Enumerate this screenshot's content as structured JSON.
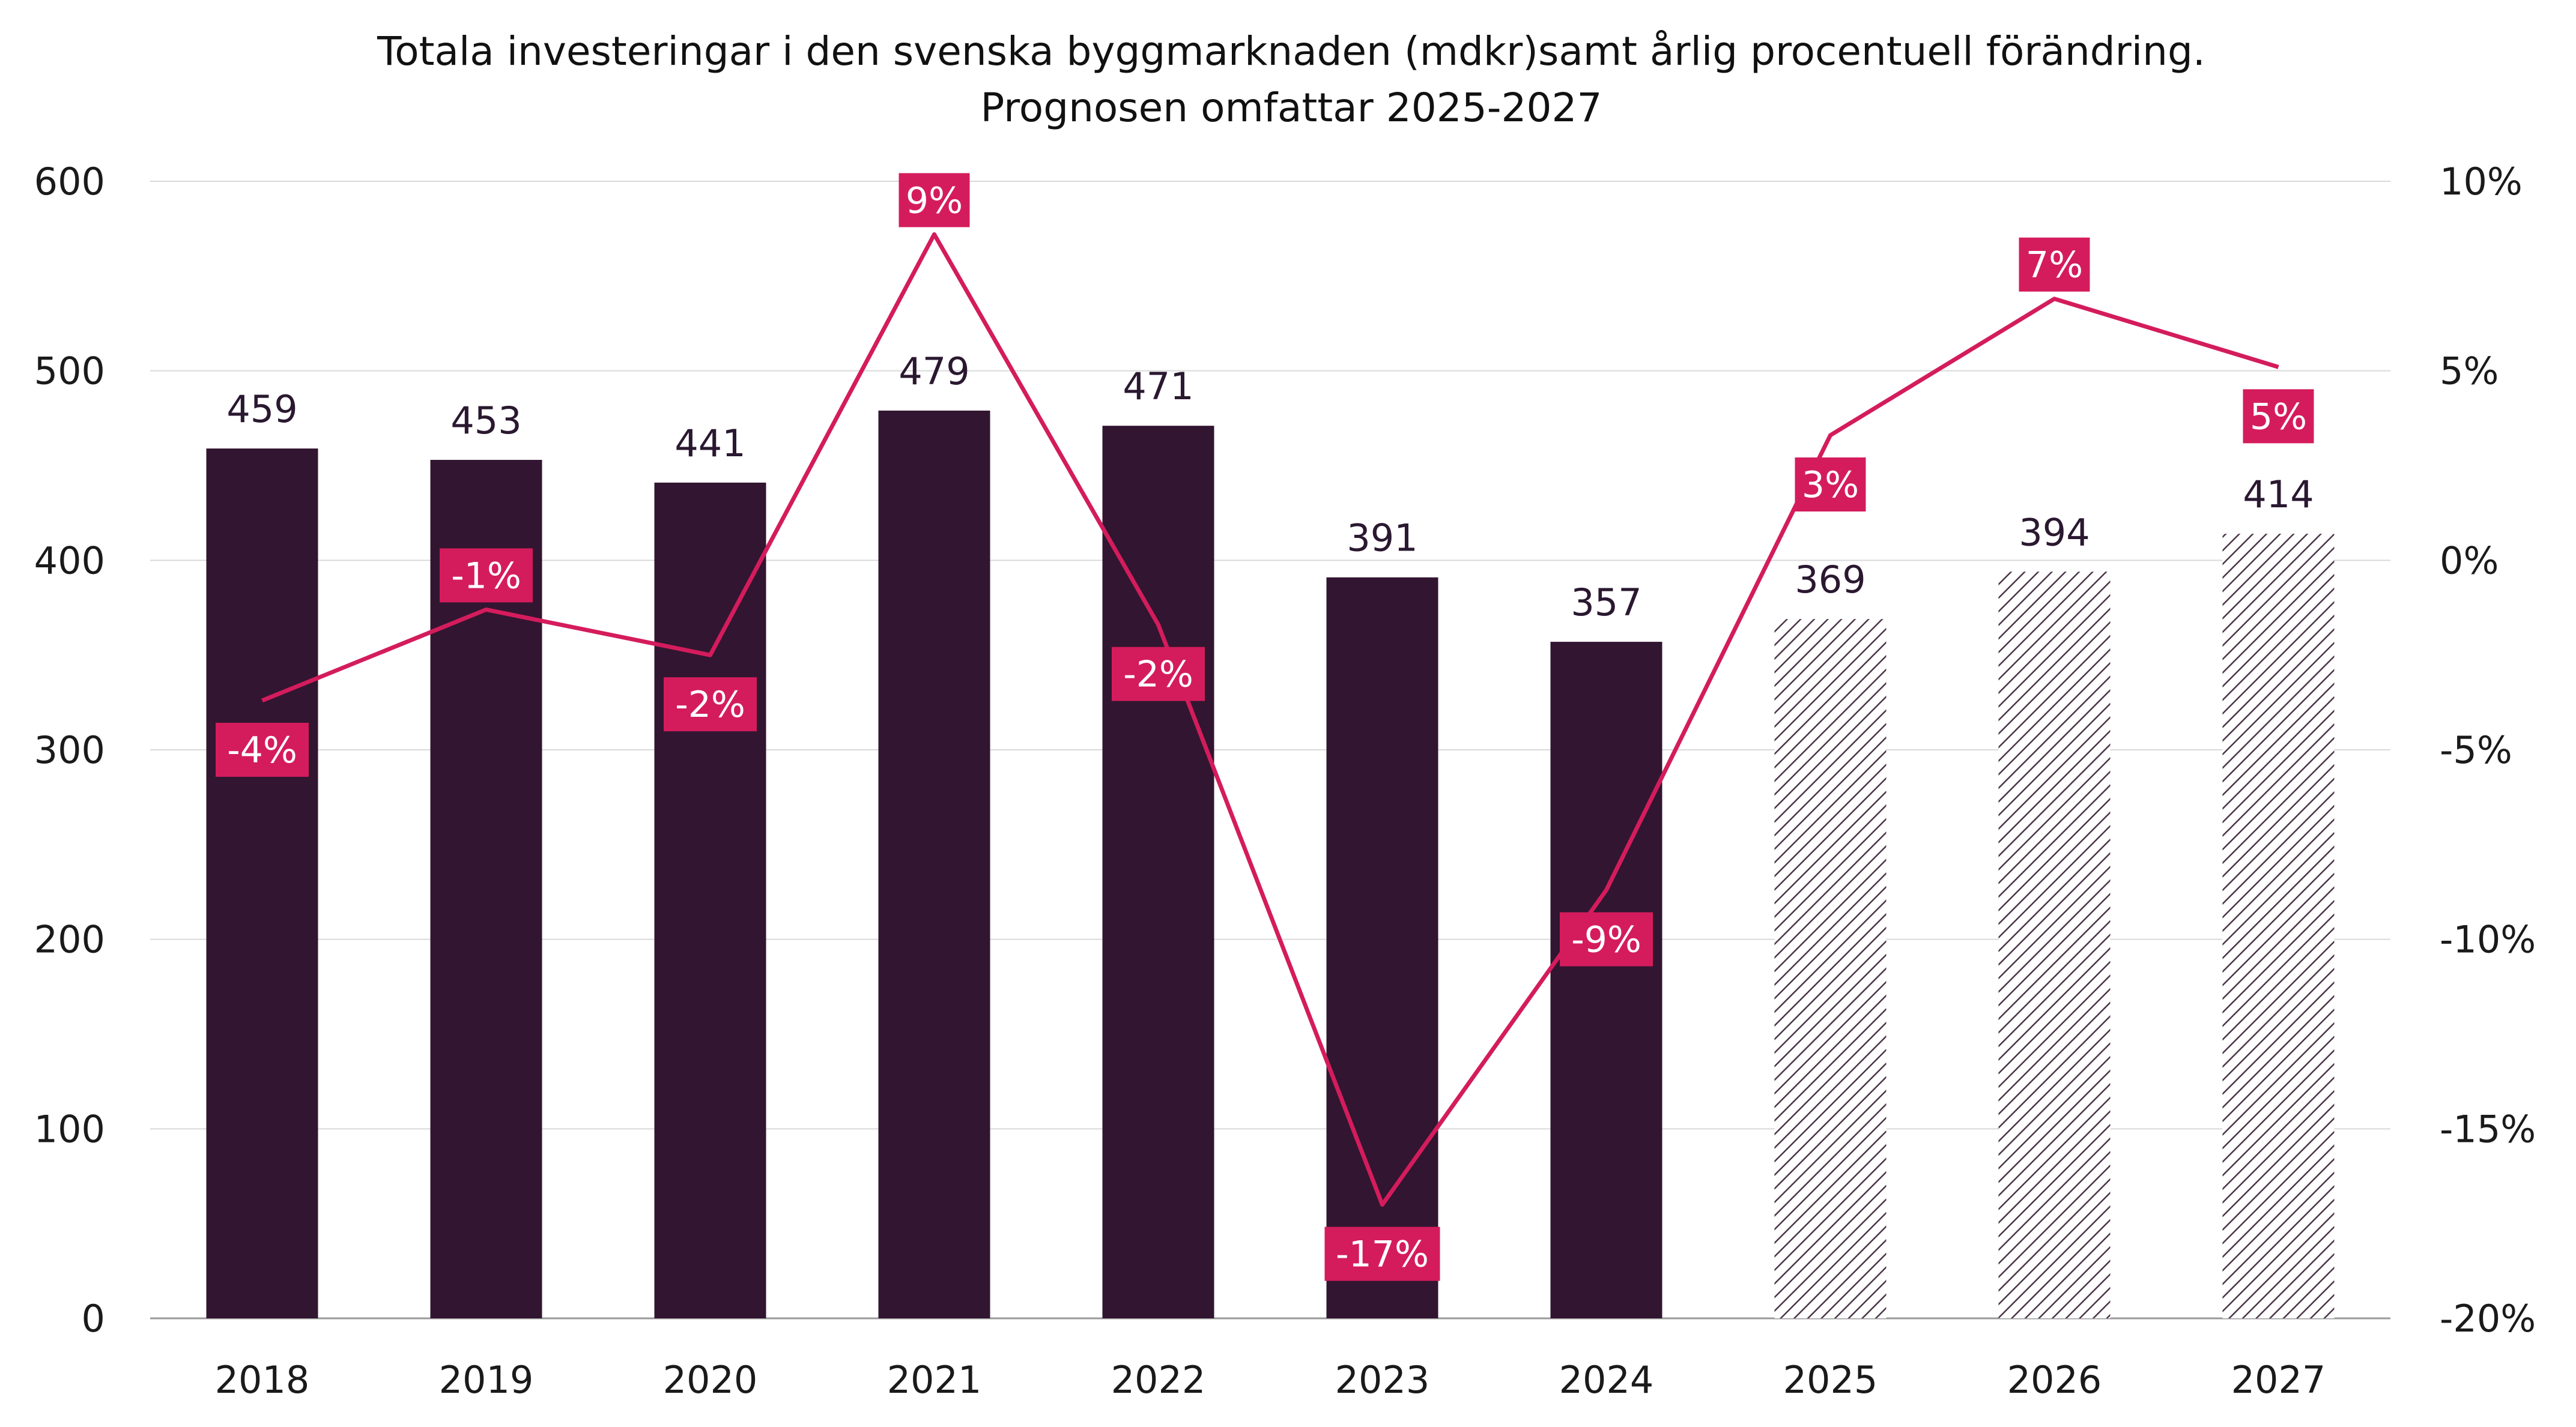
{
  "chart_data": {
    "type": "bar",
    "title": "Totala investeringar i den svenska byggmarknaden (mdkr)samt årlig procentuell förändring.",
    "subtitle": "Prognosen omfattar 2025-2027",
    "categories": [
      "2018",
      "2019",
      "2020",
      "2021",
      "2022",
      "2023",
      "2024",
      "2025",
      "2026",
      "2027"
    ],
    "series": [
      {
        "type": "bar",
        "values": [
          459,
          453,
          441,
          479,
          471,
          391,
          357,
          369,
          394,
          414
        ],
        "labels": [
          "459",
          "453",
          "441",
          "479",
          "471",
          "391",
          "357",
          "369",
          "394",
          "414"
        ],
        "forecast_from_index": 7,
        "color": "#321530",
        "forecast_pattern": "diagonal-hatch"
      },
      {
        "type": "line",
        "axis": "right",
        "values": [
          -3.7,
          -1.3,
          -2.5,
          8.6,
          -1.7,
          -17.0,
          -8.7,
          3.3,
          6.9,
          5.1
        ],
        "labels": [
          "-4%",
          "-1%",
          "-2%",
          "9%",
          "-2%",
          "-17%",
          "-9%",
          "3%",
          "7%",
          "5%"
        ],
        "color": "#d41c5c"
      }
    ],
    "left_axis": {
      "ticks": [
        "0",
        "100",
        "200",
        "300",
        "400",
        "500",
        "600"
      ],
      "ylim": [
        0,
        600
      ]
    },
    "right_axis": {
      "ticks": [
        "-20%",
        "-15%",
        "-10%",
        "-5%",
        "0%",
        "5%",
        "10%"
      ],
      "ylim": [
        -20,
        10
      ]
    },
    "grid": true,
    "legend": "none"
  }
}
